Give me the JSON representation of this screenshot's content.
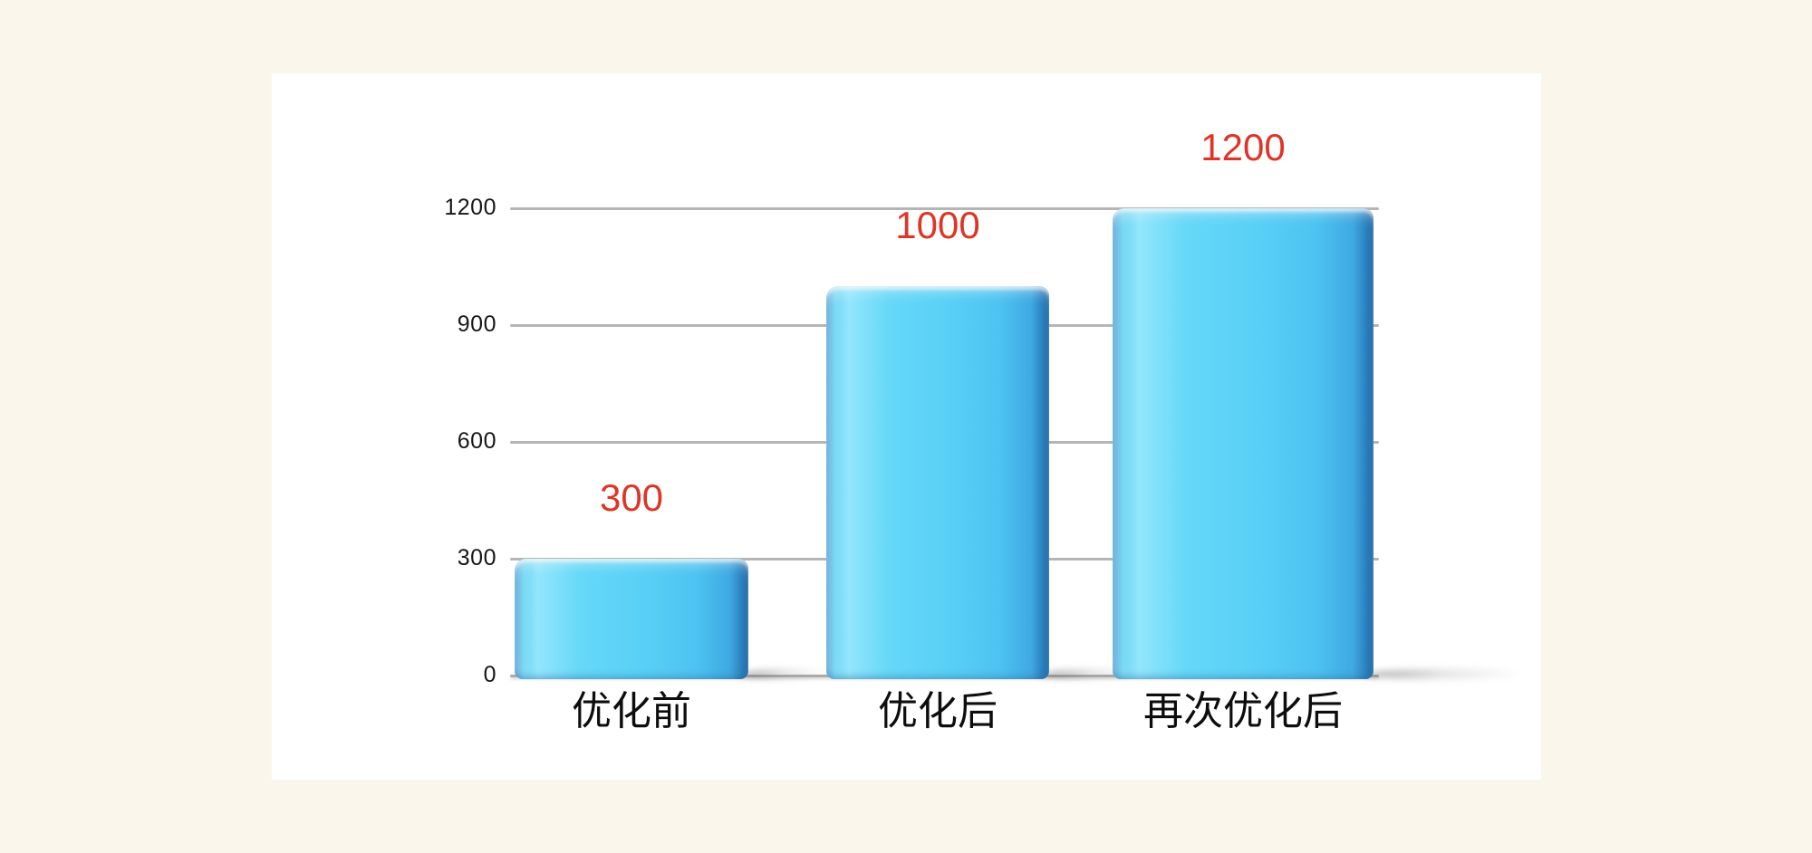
{
  "page": {
    "background_color": "#faf6ec",
    "card_color": "#ffffff"
  },
  "chart_data": {
    "type": "bar",
    "title": "",
    "xlabel": "",
    "ylabel": "",
    "categories": [
      "优化前",
      "优化后",
      "再次优化后"
    ],
    "values": [
      300,
      1000,
      1200
    ],
    "data_labels": [
      "300",
      "1000",
      "1200"
    ],
    "yticks": [
      0,
      300,
      600,
      900,
      1200
    ],
    "ytick_labels": [
      "0",
      "300",
      "600",
      "900",
      "1200"
    ],
    "ylim": [
      0,
      1300
    ],
    "grid": true,
    "legend": false,
    "bar_color": "#55cef5",
    "bar_edge_dark_color": "#2676b5",
    "bar_highlight_color": "#93e6fc",
    "value_label_color": "#de3526",
    "axis_text_color": "#161616",
    "gridline_color": "#b5b5b5"
  }
}
